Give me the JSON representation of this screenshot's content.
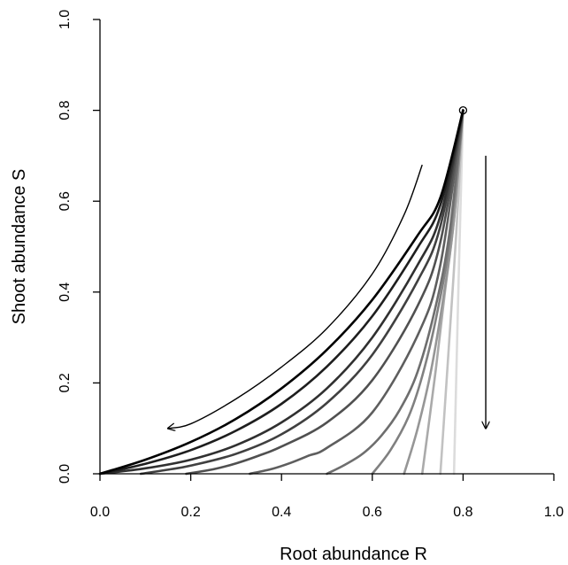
{
  "chart_data": {
    "type": "line",
    "xlabel": "Root abundance R",
    "ylabel": "Shoot abundance S",
    "xlim": [
      0,
      1
    ],
    "ylim": [
      0,
      1
    ],
    "x_ticks": [
      "0.0",
      "0.2",
      "0.4",
      "0.6",
      "0.8",
      "1.0"
    ],
    "y_ticks": [
      "0.0",
      "0.2",
      "0.4",
      "0.6",
      "0.8",
      "1.0"
    ],
    "grid": false,
    "start_point": {
      "x": 0.8,
      "y": 0.8
    },
    "series": [
      {
        "x": [
          0.0,
          0.1,
          0.2,
          0.3,
          0.4,
          0.5,
          0.6,
          0.7,
          0.75,
          0.8
        ],
        "y": [
          0.0,
          0.031,
          0.07,
          0.121,
          0.188,
          0.273,
          0.383,
          0.525,
          0.608,
          0.8
        ],
        "color": "#000000",
        "width": 2.6
      },
      {
        "x": [
          0.0,
          0.1,
          0.2,
          0.3,
          0.4,
          0.5,
          0.6,
          0.7,
          0.75,
          0.8
        ],
        "y": [
          0.0,
          0.022,
          0.052,
          0.095,
          0.154,
          0.236,
          0.347,
          0.498,
          0.592,
          0.8
        ],
        "color": "#1e1e1e",
        "width": 2.6
      },
      {
        "x": [
          0.0,
          0.1,
          0.2,
          0.3,
          0.4,
          0.5,
          0.6,
          0.7,
          0.75,
          0.8
        ],
        "y": [
          0.0,
          0.012,
          0.031,
          0.063,
          0.113,
          0.188,
          0.3,
          0.46,
          0.568,
          0.8
        ],
        "color": "#303030",
        "width": 2.6
      },
      {
        "x": [
          0.09,
          0.15,
          0.2,
          0.3,
          0.4,
          0.5,
          0.6,
          0.7,
          0.75,
          0.8
        ],
        "y": [
          0.0,
          0.009,
          0.018,
          0.044,
          0.087,
          0.156,
          0.262,
          0.425,
          0.545,
          0.8
        ],
        "color": "#404040",
        "width": 2.6
      },
      {
        "x": [
          0.19,
          0.25,
          0.3,
          0.35,
          0.4,
          0.5,
          0.6,
          0.7,
          0.75,
          0.8
        ],
        "y": [
          0.0,
          0.01,
          0.023,
          0.04,
          0.06,
          0.113,
          0.206,
          0.37,
          0.51,
          0.8
        ],
        "color": "#505050",
        "width": 2.6
      },
      {
        "x": [
          0.33,
          0.38,
          0.42,
          0.46,
          0.5,
          0.6,
          0.7,
          0.75,
          0.8
        ],
        "y": [
          0.0,
          0.011,
          0.024,
          0.04,
          0.057,
          0.135,
          0.305,
          0.46,
          0.8
        ],
        "color": "#5e5e5e",
        "width": 2.6
      },
      {
        "x": [
          0.5,
          0.54,
          0.58,
          0.62,
          0.66,
          0.7,
          0.74,
          0.77,
          0.8
        ],
        "y": [
          0.0,
          0.02,
          0.045,
          0.084,
          0.14,
          0.225,
          0.37,
          0.53,
          0.8
        ],
        "color": "#6e6e6e",
        "width": 2.6
      },
      {
        "x": [
          0.6,
          0.64,
          0.68,
          0.71,
          0.74,
          0.77,
          0.8
        ],
        "y": [
          0.0,
          0.052,
          0.126,
          0.215,
          0.34,
          0.51,
          0.8
        ],
        "color": "#808080",
        "width": 2.6
      },
      {
        "x": [
          0.67,
          0.7,
          0.73,
          0.76,
          0.78,
          0.8
        ],
        "y": [
          0.0,
          0.1,
          0.23,
          0.41,
          0.56,
          0.8
        ],
        "color": "#969696",
        "width": 2.6
      },
      {
        "x": [
          0.71,
          0.74,
          0.76,
          0.78,
          0.8
        ],
        "y": [
          0.0,
          0.23,
          0.4,
          0.56,
          0.8
        ],
        "color": "#aaaaaa",
        "width": 2.6
      },
      {
        "x": [
          0.75,
          0.77,
          0.785,
          0.8
        ],
        "y": [
          0.0,
          0.3,
          0.53,
          0.8
        ],
        "color": "#c2c2c2",
        "width": 2.6
      },
      {
        "x": [
          0.78,
          0.79,
          0.8
        ],
        "y": [
          0.0,
          0.42,
          0.8
        ],
        "color": "#dcdcdc",
        "width": 2.6
      }
    ],
    "annotations": [
      {
        "type": "curved-arrow",
        "x": [
          0.71,
          0.67,
          0.6,
          0.5,
          0.4,
          0.3,
          0.2,
          0.15
        ],
        "y": [
          0.68,
          0.57,
          0.44,
          0.32,
          0.235,
          0.165,
          0.11,
          0.1
        ]
      },
      {
        "type": "arrow",
        "x": [
          0.85,
          0.85
        ],
        "y": [
          0.7,
          0.1
        ]
      }
    ]
  }
}
